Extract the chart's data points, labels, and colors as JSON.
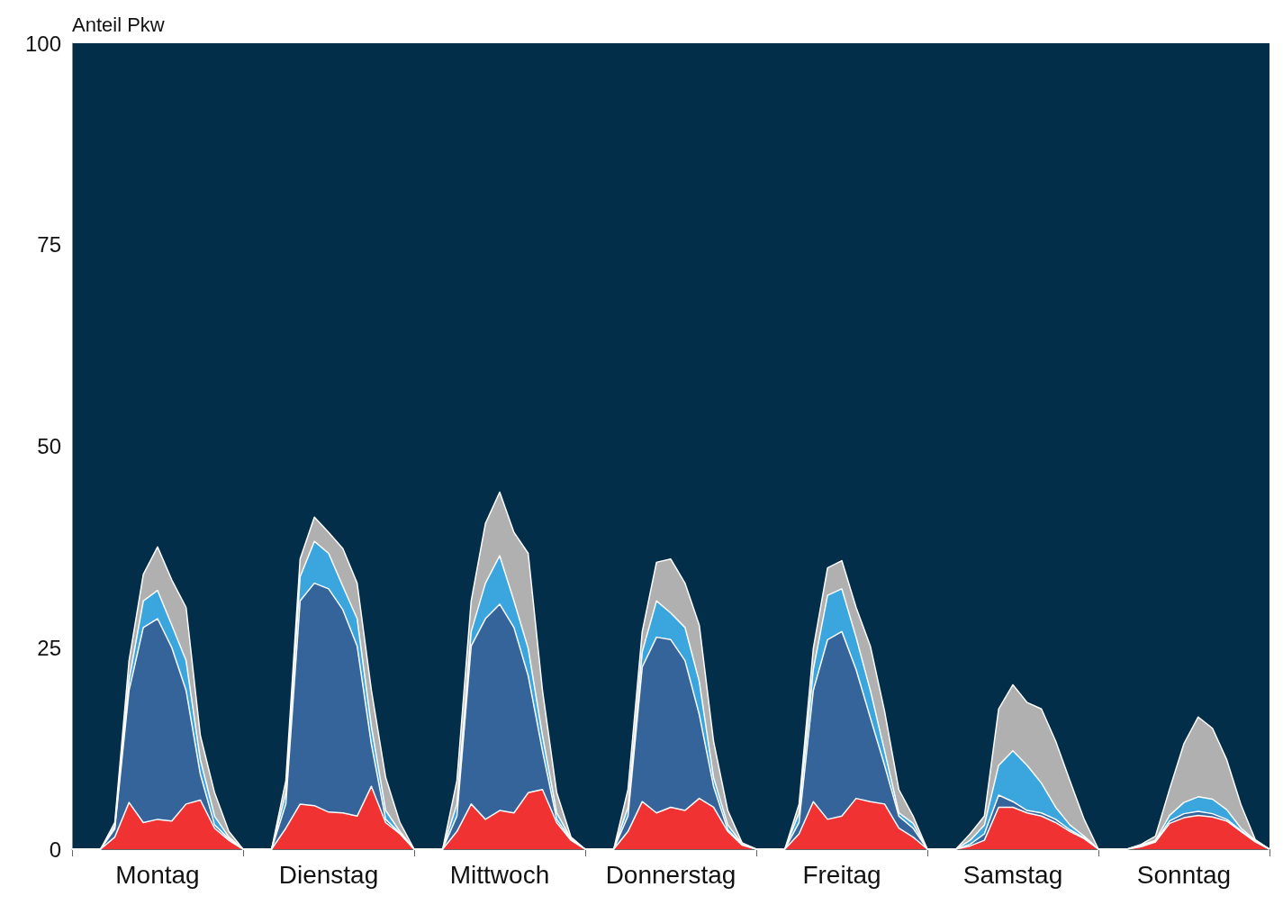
{
  "chart_data": {
    "type": "area",
    "stacked": true,
    "ylabel": "Anteil Pkw",
    "grid": false,
    "marker": "none",
    "categories": [
      null,
      null,
      null,
      null,
      null,
      null,
      "Montag",
      null,
      null,
      null,
      null,
      null,
      null,
      null,
      null,
      null,
      null,
      null,
      "Dienstag",
      null,
      null,
      null,
      null,
      null,
      null,
      null,
      null,
      null,
      null,
      null,
      "Mittwoch",
      null,
      null,
      null,
      null,
      null,
      null,
      null,
      null,
      null,
      null,
      null,
      "Donnerstag",
      null,
      null,
      null,
      null,
      null,
      null,
      null,
      null,
      null,
      null,
      null,
      "Freitag",
      null,
      null,
      null,
      null,
      null,
      null,
      null,
      null,
      null,
      null,
      null,
      "Samstag",
      null,
      null,
      null,
      null,
      null,
      null,
      null,
      null,
      null,
      null,
      null,
      "Sonntag",
      null,
      null,
      null,
      null,
      null,
      null
    ],
    "ylim": [
      0,
      100
    ],
    "yticks": [
      0,
      25,
      50,
      75,
      100
    ],
    "series": [
      {
        "color": "#f03232",
        "values": [
          0,
          0,
          0,
          1.5,
          5.8,
          3.3,
          3.7,
          3.5,
          5.6,
          6.1,
          2.6,
          1.1,
          0,
          0,
          0,
          2.6,
          5.6,
          5.4,
          4.6,
          4.5,
          4.1,
          7.8,
          3.3,
          1.9,
          0,
          0,
          0,
          2.2,
          5.6,
          3.7,
          4.8,
          4.5,
          7.0,
          7.4,
          3.3,
          1.1,
          0,
          0,
          0,
          2.2,
          5.9,
          4.5,
          5.2,
          4.8,
          6.3,
          5.2,
          2.2,
          0.5,
          0,
          0,
          0,
          1.9,
          5.9,
          3.7,
          4.1,
          6.3,
          5.9,
          5.6,
          2.6,
          1.5,
          0,
          0,
          0,
          0.4,
          1.1,
          5.2,
          5.2,
          4.5,
          4.1,
          3.3,
          2.2,
          1.3,
          0,
          0,
          0,
          0.3,
          0.9,
          3.2,
          3.9,
          4.2,
          4.0,
          3.5,
          2.2,
          0.9,
          0
        ]
      },
      {
        "color": "#35649a",
        "values": [
          0,
          0,
          0,
          1.0,
          13.9,
          24.2,
          24.9,
          21.5,
          14.1,
          3.2,
          0.4,
          0.2,
          0,
          0,
          0,
          3.0,
          25.2,
          27.6,
          27.7,
          25.2,
          21.1,
          5.2,
          0.4,
          0.1,
          0,
          0,
          0,
          1.9,
          19.6,
          24.9,
          25.6,
          23.0,
          14.5,
          4.8,
          0.4,
          0.1,
          0,
          0,
          0,
          1.9,
          16.7,
          21.8,
          20.8,
          18.6,
          10.4,
          2.6,
          0.2,
          0.1,
          0,
          0,
          0,
          1.4,
          13.8,
          22.3,
          22.9,
          16.0,
          10.4,
          4.8,
          1.5,
          1.1,
          0,
          0,
          0,
          0.2,
          0.8,
          1.5,
          0.7,
          0.3,
          0.4,
          0.4,
          0.2,
          0.1,
          0,
          0,
          0,
          0.1,
          0.1,
          0.3,
          0.5,
          0.5,
          0.4,
          0.2,
          0.1,
          0.1,
          0
        ]
      },
      {
        "color": "#3aa6dd",
        "values": [
          0,
          0,
          0,
          0.3,
          1.3,
          3.3,
          3.5,
          2.8,
          3.7,
          1.8,
          1.1,
          0.2,
          0,
          0,
          0,
          1.4,
          3.0,
          5.2,
          4.4,
          2.9,
          3.4,
          2.2,
          1.1,
          0.2,
          0,
          0,
          0,
          1.5,
          1.8,
          4.4,
          6.0,
          3.3,
          3.4,
          1.9,
          0.8,
          0.1,
          0,
          0,
          0,
          1.1,
          1.9,
          4.5,
          3.3,
          4.1,
          4.1,
          1.1,
          0.6,
          0.1,
          0,
          0,
          0,
          1.2,
          2.6,
          5.5,
          5.3,
          4.0,
          3.4,
          1.8,
          0.4,
          0.6,
          0,
          0,
          0,
          0.5,
          1.1,
          3.7,
          6.3,
          5.6,
          3.7,
          1.5,
          0.6,
          0.2,
          0,
          0,
          0,
          0.1,
          0.1,
          0.7,
          1.4,
          1.8,
          1.8,
          1.2,
          0.3,
          0.1,
          0
        ]
      },
      {
        "color": "#b0b0b0",
        "values": [
          0,
          0,
          0,
          0.5,
          2.4,
          3.3,
          5.4,
          5.6,
          6.6,
          3.0,
          2.9,
          0.7,
          0,
          0,
          0,
          1.5,
          2.2,
          3.0,
          2.6,
          4.7,
          4.4,
          4.5,
          4.1,
          1.1,
          0,
          0,
          0,
          2.9,
          3.8,
          7.4,
          7.9,
          8.5,
          11.8,
          5.6,
          2.5,
          0.2,
          0,
          0,
          0,
          2.2,
          2.5,
          4.8,
          6.7,
          5.5,
          7.0,
          4.5,
          1.8,
          0.1,
          0,
          0,
          0,
          1.1,
          2.6,
          3.4,
          3.5,
          3.7,
          5.5,
          4.9,
          2.9,
          0.9,
          0,
          0,
          0,
          0.8,
          1.1,
          7.0,
          8.2,
          7.8,
          9.2,
          8.2,
          5.5,
          2.1,
          0,
          0,
          0,
          0.1,
          0.5,
          3.3,
          7.3,
          9.9,
          8.8,
          6.2,
          2.9,
          0.1,
          0
        ]
      }
    ]
  }
}
